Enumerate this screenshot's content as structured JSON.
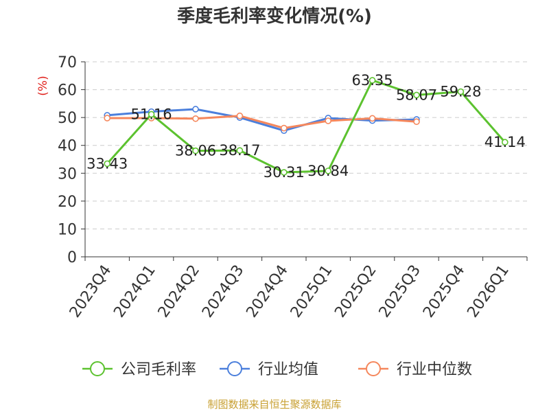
{
  "chart_data": {
    "type": "line",
    "title": "季度毛利率变化情况(%)",
    "ylabel": "(%)",
    "categories": [
      "2023Q4",
      "2024Q1",
      "2024Q2",
      "2024Q3",
      "2024Q4",
      "2025Q1",
      "2025Q2",
      "2025Q3",
      "2025Q4",
      "2026Q1"
    ],
    "ylim": [
      0,
      70
    ],
    "yticks": [
      0,
      10,
      20,
      30,
      40,
      50,
      60,
      70
    ],
    "grid": true,
    "legend_position": "bottom",
    "series": [
      {
        "name": "公司毛利率",
        "color": "#5cc22f",
        "labels": true,
        "values": [
          33.43,
          51.16,
          38.06,
          38.17,
          30.31,
          30.84,
          63.35,
          58.07,
          59.28,
          41.14
        ],
        "label_text": [
          "33.43",
          "51.16",
          "38.06",
          "38.17",
          "30.31",
          "30.84",
          "63.35",
          "58.07",
          "59.28",
          "41.14"
        ]
      },
      {
        "name": "行业均值",
        "color": "#4b7fdc",
        "labels": false,
        "values": [
          50.8,
          52.1,
          53.0,
          50.0,
          45.3,
          49.8,
          48.9,
          49.3,
          null,
          null
        ]
      },
      {
        "name": "行业中位数",
        "color": "#f5875c",
        "labels": false,
        "values": [
          49.8,
          49.8,
          49.6,
          50.6,
          46.2,
          48.8,
          49.7,
          48.5,
          null,
          null
        ]
      }
    ]
  },
  "source_text": "制图数据来自恒生聚源数据库",
  "colors": {
    "axis": "#333333",
    "grid": "#cccccc",
    "ylabel": "#e0201b",
    "source": "#c8a032"
  }
}
